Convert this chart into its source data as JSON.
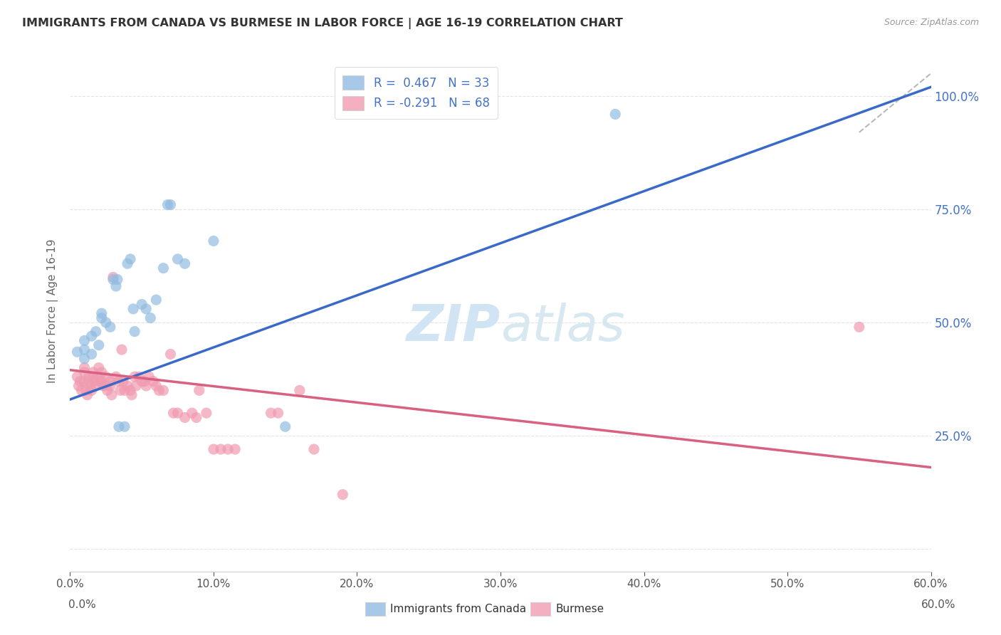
{
  "title": "IMMIGRANTS FROM CANADA VS BURMESE IN LABOR FORCE | AGE 16-19 CORRELATION CHART",
  "source": "Source: ZipAtlas.com",
  "ylabel": "In Labor Force | Age 16-19",
  "yticks": [
    0.0,
    0.25,
    0.5,
    0.75,
    1.0
  ],
  "ytick_labels": [
    "",
    "25.0%",
    "50.0%",
    "75.0%",
    "100.0%"
  ],
  "legend_entry_blue": "R =  0.467   N = 33",
  "legend_entry_pink": "R = -0.291   N = 68",
  "blue_scatter": [
    [
      0.005,
      0.435
    ],
    [
      0.01,
      0.44
    ],
    [
      0.01,
      0.46
    ],
    [
      0.01,
      0.42
    ],
    [
      0.015,
      0.47
    ],
    [
      0.015,
      0.43
    ],
    [
      0.018,
      0.48
    ],
    [
      0.02,
      0.45
    ],
    [
      0.022,
      0.51
    ],
    [
      0.022,
      0.52
    ],
    [
      0.025,
      0.5
    ],
    [
      0.028,
      0.49
    ],
    [
      0.03,
      0.595
    ],
    [
      0.032,
      0.58
    ],
    [
      0.033,
      0.595
    ],
    [
      0.034,
      0.27
    ],
    [
      0.038,
      0.27
    ],
    [
      0.04,
      0.63
    ],
    [
      0.042,
      0.64
    ],
    [
      0.044,
      0.53
    ],
    [
      0.045,
      0.48
    ],
    [
      0.05,
      0.54
    ],
    [
      0.053,
      0.53
    ],
    [
      0.056,
      0.51
    ],
    [
      0.06,
      0.55
    ],
    [
      0.065,
      0.62
    ],
    [
      0.068,
      0.76
    ],
    [
      0.07,
      0.76
    ],
    [
      0.075,
      0.64
    ],
    [
      0.08,
      0.63
    ],
    [
      0.1,
      0.68
    ],
    [
      0.15,
      0.27
    ],
    [
      0.38,
      0.96
    ]
  ],
  "pink_scatter": [
    [
      0.005,
      0.38
    ],
    [
      0.006,
      0.36
    ],
    [
      0.007,
      0.37
    ],
    [
      0.008,
      0.35
    ],
    [
      0.01,
      0.4
    ],
    [
      0.01,
      0.39
    ],
    [
      0.01,
      0.37
    ],
    [
      0.011,
      0.35
    ],
    [
      0.012,
      0.34
    ],
    [
      0.013,
      0.38
    ],
    [
      0.013,
      0.37
    ],
    [
      0.014,
      0.36
    ],
    [
      0.015,
      0.35
    ],
    [
      0.016,
      0.39
    ],
    [
      0.016,
      0.38
    ],
    [
      0.017,
      0.37
    ],
    [
      0.018,
      0.36
    ],
    [
      0.02,
      0.4
    ],
    [
      0.02,
      0.38
    ],
    [
      0.021,
      0.37
    ],
    [
      0.022,
      0.39
    ],
    [
      0.022,
      0.37
    ],
    [
      0.023,
      0.36
    ],
    [
      0.025,
      0.38
    ],
    [
      0.025,
      0.36
    ],
    [
      0.026,
      0.35
    ],
    [
      0.028,
      0.37
    ],
    [
      0.028,
      0.36
    ],
    [
      0.029,
      0.34
    ],
    [
      0.03,
      0.6
    ],
    [
      0.032,
      0.38
    ],
    [
      0.034,
      0.37
    ],
    [
      0.035,
      0.35
    ],
    [
      0.036,
      0.44
    ],
    [
      0.037,
      0.37
    ],
    [
      0.038,
      0.35
    ],
    [
      0.04,
      0.36
    ],
    [
      0.042,
      0.35
    ],
    [
      0.043,
      0.34
    ],
    [
      0.045,
      0.38
    ],
    [
      0.046,
      0.36
    ],
    [
      0.048,
      0.38
    ],
    [
      0.05,
      0.37
    ],
    [
      0.052,
      0.37
    ],
    [
      0.053,
      0.36
    ],
    [
      0.055,
      0.38
    ],
    [
      0.058,
      0.37
    ],
    [
      0.06,
      0.36
    ],
    [
      0.062,
      0.35
    ],
    [
      0.065,
      0.35
    ],
    [
      0.07,
      0.43
    ],
    [
      0.072,
      0.3
    ],
    [
      0.075,
      0.3
    ],
    [
      0.08,
      0.29
    ],
    [
      0.085,
      0.3
    ],
    [
      0.088,
      0.29
    ],
    [
      0.09,
      0.35
    ],
    [
      0.095,
      0.3
    ],
    [
      0.1,
      0.22
    ],
    [
      0.105,
      0.22
    ],
    [
      0.11,
      0.22
    ],
    [
      0.115,
      0.22
    ],
    [
      0.14,
      0.3
    ],
    [
      0.145,
      0.3
    ],
    [
      0.16,
      0.35
    ],
    [
      0.17,
      0.22
    ],
    [
      0.19,
      0.12
    ],
    [
      0.55,
      0.49
    ]
  ],
  "blue_line_x": [
    0.0,
    0.6
  ],
  "blue_line_y": [
    0.33,
    1.02
  ],
  "pink_line_x": [
    0.0,
    0.6
  ],
  "pink_line_y": [
    0.395,
    0.18
  ],
  "gray_line_x": [
    0.55,
    0.6
  ],
  "gray_line_y": [
    0.92,
    1.05
  ],
  "xlim": [
    0.0,
    0.6
  ],
  "ylim": [
    -0.05,
    1.1
  ],
  "scatter_blue_color": "#92bce0",
  "scatter_pink_color": "#f09ab0",
  "trend_blue_color": "#3a6ac8",
  "trend_pink_color": "#d86080",
  "gray_line_color": "#b8b8b8",
  "background_color": "#ffffff",
  "grid_color": "#e0e0e0",
  "title_color": "#333333",
  "axis_label_color": "#666666",
  "right_axis_color": "#4472c4",
  "legend_blue_color": "#a8c8e8",
  "legend_pink_color": "#f4b0c0",
  "watermark_zip": "ZIP",
  "watermark_atlas": "atlas",
  "watermark_color": "#d0e4f4"
}
